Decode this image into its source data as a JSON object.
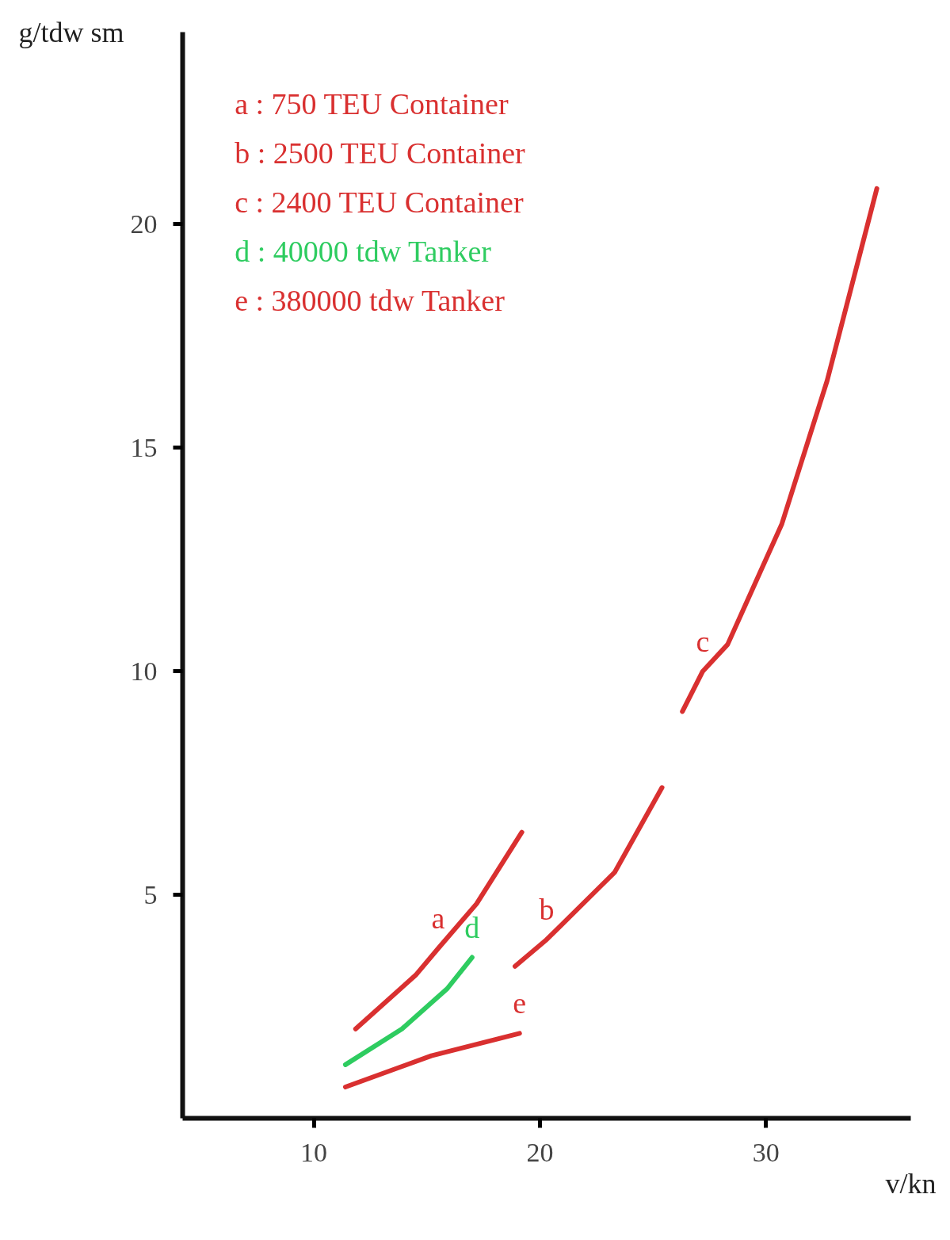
{
  "chart_data": {
    "type": "line",
    "xlabel": "v/kn",
    "ylabel": "g/tdw sm",
    "xlim": [
      4.2,
      36.4
    ],
    "ylim": [
      0,
      24.3
    ],
    "xticks": [
      10,
      20,
      30
    ],
    "yticks": [
      5,
      10,
      15,
      20
    ],
    "grid": false,
    "line_style": "solid",
    "marker": "none",
    "series": [
      {
        "color": "#d93030",
        "x": [
          11.85,
          14.5,
          15.5,
          17.2,
          19.2
        ],
        "values": [
          2.0,
          3.2,
          3.8,
          4.8,
          6.4
        ]
      },
      {
        "color": "#d93030",
        "x": [
          18.9,
          20.3,
          20.9,
          23.3,
          25.4
        ],
        "values": [
          3.4,
          4.0,
          4.3,
          5.5,
          7.4
        ]
      },
      {
        "color": "#d93030",
        "x": [
          26.3,
          27.2,
          28.3,
          30.7,
          32.7,
          34.9
        ],
        "values": [
          9.1,
          10.0,
          10.6,
          13.3,
          16.5,
          20.8
        ]
      },
      {
        "color": "#2ecc60",
        "x": [
          11.4,
          13.9,
          15.9,
          17.0
        ],
        "values": [
          1.2,
          2.0,
          2.9,
          3.6
        ]
      },
      {
        "color": "#d93030",
        "x": [
          11.4,
          15.2,
          19.1
        ],
        "values": [
          0.7,
          1.4,
          1.9
        ]
      }
    ],
    "annotations": [
      "a : 750 TEU Container",
      "b : 2500 TEU Container",
      "c : 2400 TEU Container",
      "d : 40000 tdw Tanker",
      "e : 380000 tdw Tanker",
      {
        "text": "a",
        "x": 15.5,
        "y": 3.8
      },
      {
        "text": "b",
        "x": 20.3,
        "y": 4.0
      },
      {
        "text": "c",
        "x": 27.2,
        "y": 10.0
      },
      {
        "text": "d",
        "x": 17.0,
        "y": 3.6
      },
      {
        "text": "e",
        "x": 19.1,
        "y": 1.9
      }
    ]
  }
}
